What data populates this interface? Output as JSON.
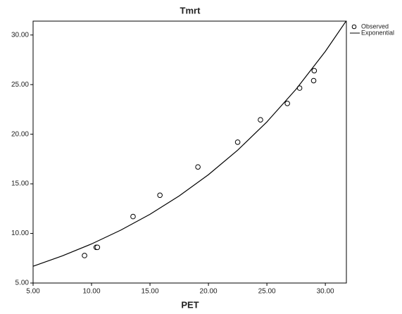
{
  "chart_data": {
    "type": "scatter",
    "title": "Tmrt",
    "x_label": "PET",
    "series": [
      {
        "name": "Observed",
        "kind": "points",
        "color": "#000000",
        "x": [
          9.4,
          10.4,
          10.5,
          13.55,
          15.85,
          19.1,
          22.5,
          24.45,
          26.75,
          27.8,
          29.0,
          29.05
        ],
        "values": [
          7.77,
          8.6,
          8.6,
          11.7,
          13.85,
          16.7,
          19.2,
          21.45,
          23.1,
          24.65,
          25.4,
          26.4
        ]
      },
      {
        "name": "Exponential",
        "kind": "line",
        "color": "#000000",
        "x": [
          5,
          7.5,
          10,
          12.5,
          15,
          17.5,
          20,
          22.5,
          25,
          27.5,
          30,
          31.75
        ],
        "values": [
          6.69,
          7.74,
          8.94,
          10.33,
          11.93,
          13.78,
          15.92,
          18.39,
          21.24,
          24.54,
          28.35,
          31.36
        ]
      }
    ],
    "xlim": [
      5,
      31.8
    ],
    "ylim": [
      5,
      31.4
    ],
    "xticks": [
      {
        "value": 5,
        "label": "5.00"
      },
      {
        "value": 10,
        "label": "10.00"
      },
      {
        "value": 15,
        "label": "15.00"
      },
      {
        "value": 20,
        "label": "20.00"
      },
      {
        "value": 25,
        "label": "25.00"
      },
      {
        "value": 30,
        "label": "30.00"
      }
    ],
    "yticks": [
      {
        "value": 5,
        "label": "5.00"
      },
      {
        "value": 10,
        "label": "10.00"
      },
      {
        "value": 15,
        "label": "15.00"
      },
      {
        "value": 20,
        "label": "20.00"
      },
      {
        "value": 25,
        "label": "25.00"
      },
      {
        "value": 30,
        "label": "30.00"
      }
    ],
    "legend": "top-right"
  }
}
